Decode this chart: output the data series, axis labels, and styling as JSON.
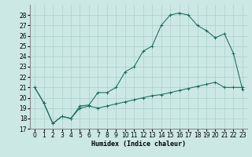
{
  "xlabel": "Humidex (Indice chaleur)",
  "background_color": "#cce8e4",
  "grid_color": "#aacfca",
  "line_color": "#1a6b5a",
  "x_upper": [
    0,
    1,
    2,
    3,
    4,
    5,
    6,
    7,
    8,
    9,
    10,
    11,
    12,
    13,
    14,
    15,
    16,
    17,
    18,
    19,
    20,
    21,
    22,
    23
  ],
  "y_upper": [
    21.0,
    19.5,
    17.5,
    18.2,
    18.0,
    19.2,
    19.3,
    20.5,
    20.5,
    21.0,
    22.5,
    23.0,
    24.5,
    25.0,
    27.0,
    28.0,
    28.2,
    28.0,
    27.0,
    26.5,
    25.8,
    26.2,
    24.3,
    20.8
  ],
  "x_lower": [
    0,
    1,
    2,
    3,
    4,
    5,
    6,
    7,
    8,
    9,
    10,
    11,
    12,
    13,
    14,
    15,
    16,
    17,
    18,
    19,
    20,
    21,
    22,
    23
  ],
  "y_lower": [
    21.0,
    19.5,
    17.5,
    18.2,
    18.0,
    19.0,
    19.2,
    19.0,
    19.2,
    19.4,
    19.6,
    19.8,
    20.0,
    20.2,
    20.3,
    20.5,
    20.7,
    20.9,
    21.1,
    21.3,
    21.5,
    21.0,
    21.0,
    21.0
  ],
  "ylim": [
    17,
    29
  ],
  "xlim": [
    -0.5,
    23.5
  ],
  "yticks": [
    17,
    18,
    19,
    20,
    21,
    22,
    23,
    24,
    25,
    26,
    27,
    28
  ],
  "xtick_labels": [
    "0",
    "1",
    "2",
    "3",
    "4",
    "5",
    "6",
    "7",
    "8",
    "9",
    "10",
    "11",
    "12",
    "13",
    "14",
    "15",
    "16",
    "17",
    "18",
    "19",
    "20",
    "21",
    "22",
    "23"
  ]
}
